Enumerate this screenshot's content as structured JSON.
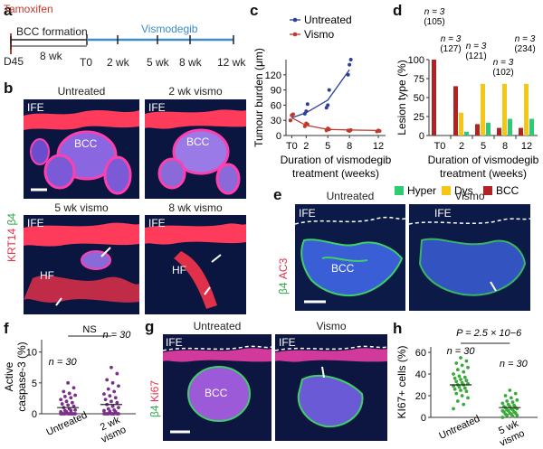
{
  "panels": {
    "a": "a",
    "b": "b",
    "c": "c",
    "d": "d",
    "e": "e",
    "f": "f",
    "g": "g",
    "h": "h"
  },
  "timeline": {
    "tamoxifen": "Tamoxifen",
    "bcc_formation": "BCC formation",
    "vismodegib": "Vismodegib",
    "d45": "D45",
    "eight_wk": "8 wk",
    "ticks": [
      "T0",
      "2 wk",
      "5 wk",
      "8 wk",
      "12 wk"
    ]
  },
  "panel_b": {
    "stain_krt14": "KRT14",
    "stain_b4": "β4",
    "images": [
      {
        "title": "Untreated",
        "labels": [
          "IFE",
          "BCC"
        ]
      },
      {
        "title": "2 wk vismo",
        "labels": [
          "IFE",
          "BCC"
        ]
      },
      {
        "title": "5 wk vismo",
        "labels": [
          "IFE",
          "HF"
        ]
      },
      {
        "title": "8 wk vismo",
        "labels": [
          "IFE",
          "HF"
        ]
      }
    ]
  },
  "panel_e": {
    "stain_b4": "β4",
    "stain_ac3": "AC3",
    "images": [
      {
        "title": "Untreated",
        "labels": [
          "IFE",
          "BCC"
        ]
      },
      {
        "title": "Vismo",
        "labels": [
          "IFE"
        ]
      }
    ]
  },
  "panel_g": {
    "stain_b4": "β4",
    "stain_ki67": "Ki67",
    "images": [
      {
        "title": "Untreated",
        "labels": [
          "IFE",
          "BCC"
        ]
      },
      {
        "title": "Vismo",
        "labels": [
          "IFE"
        ]
      }
    ]
  },
  "chart_data": [
    {
      "id": "c",
      "type": "line",
      "ylabel": "Tumour burden (μm)",
      "xlabel_line1": "Duration of vismodegib",
      "xlabel_line2": "treatment (weeks)",
      "x_ticks": [
        "T0",
        "2",
        "5",
        "8",
        "12"
      ],
      "x_values": [
        0,
        2,
        5,
        8,
        12
      ],
      "y_ticks": [
        "0",
        "30",
        "60",
        "90",
        "120"
      ],
      "ylim": [
        0,
        150
      ],
      "xlim": [
        -0.8,
        13
      ],
      "legend": [
        "Untreated",
        "Vismo"
      ],
      "colors": {
        "untreated": "#2b3f95",
        "vismo": "#c0392b"
      },
      "series": [
        {
          "name": "Untreated",
          "line_x": [
            0,
            2,
            5,
            8
          ],
          "line_y": [
            35,
            45,
            70,
            130
          ],
          "points_x": [
            0,
            0,
            0,
            2,
            2,
            2,
            5,
            5,
            5,
            8,
            8,
            8
          ],
          "points_y": [
            30,
            40,
            42,
            43,
            48,
            62,
            55,
            60,
            90,
            120,
            140,
            150
          ]
        },
        {
          "name": "Vismo",
          "line_x": [
            0,
            2,
            5,
            8,
            12
          ],
          "line_y": [
            35,
            20,
            12,
            11,
            10
          ],
          "points_x": [
            0,
            0,
            0,
            2,
            2,
            2,
            5,
            5,
            5,
            8,
            8,
            8,
            12,
            12,
            12
          ],
          "points_y": [
            30,
            40,
            42,
            18,
            24,
            22,
            10,
            14,
            12,
            10,
            9,
            11,
            8,
            10,
            9
          ]
        }
      ]
    },
    {
      "id": "d",
      "type": "bar",
      "ylabel": "Lesion type (%)",
      "xlabel_line1": "Duration of vismodegib",
      "xlabel_line2": "treatment (weeks)",
      "categories": [
        "T0",
        "2",
        "5",
        "8",
        "12"
      ],
      "y_ticks": [
        "0",
        "25",
        "50",
        "75",
        "100"
      ],
      "ylim": [
        0,
        100
      ],
      "legend": [
        "Hyper",
        "Dys",
        "BCC"
      ],
      "colors": {
        "hyper": "#2ecc71",
        "dys": "#f5c518",
        "bcc": "#b22222"
      },
      "series": [
        {
          "name": "BCC",
          "values": [
            100,
            65,
            15,
            10,
            10
          ]
        },
        {
          "name": "Dys",
          "values": [
            0,
            30,
            68,
            68,
            68
          ]
        },
        {
          "name": "Hyper",
          "values": [
            0,
            5,
            17,
            22,
            22
          ]
        }
      ],
      "annotations": [
        {
          "category": "T0",
          "lines": [
            "n = 3",
            "(105)"
          ]
        },
        {
          "category": "2",
          "lines": [
            "n = 3",
            "(127)"
          ]
        },
        {
          "category": "5",
          "lines": [
            "n = 3",
            "(121)"
          ]
        },
        {
          "category": "8",
          "lines": [
            "n = 3",
            "(102)"
          ]
        },
        {
          "category": "12",
          "lines": [
            "n = 3",
            "(234)"
          ]
        }
      ]
    },
    {
      "id": "f",
      "type": "scatter",
      "ylabel_line1": "Active",
      "ylabel_line2": "caspase-3 (%)",
      "categories": [
        "Untreated",
        "2 wk\nvismo"
      ],
      "cat_line1": [
        "Untreated",
        "2 wk"
      ],
      "cat_line2": [
        "",
        "vismo"
      ],
      "y_ticks": [
        "0",
        "5",
        "10"
      ],
      "ylim": [
        0,
        12
      ],
      "ns": "NS",
      "n_labels": [
        "n = 30",
        "n = 30"
      ],
      "means": [
        1.0,
        1.5
      ],
      "points": [
        [
          0,
          0,
          0,
          0,
          0,
          0,
          0,
          0,
          0,
          0,
          0.3,
          0.3,
          0.5,
          0.5,
          0.6,
          0.8,
          1.0,
          1.2,
          1.4,
          1.6,
          1.8,
          2.0,
          2.3,
          2.6,
          2.8,
          3.0,
          3.3,
          3.6,
          4.2,
          5.0
        ],
        [
          0,
          0,
          0,
          0,
          0,
          0,
          0,
          0,
          0,
          0.3,
          0.4,
          0.5,
          0.6,
          0.8,
          1.0,
          1.2,
          1.5,
          1.8,
          2.0,
          2.3,
          2.6,
          2.9,
          3.2,
          3.6,
          4.0,
          4.5,
          5.0,
          5.5,
          6.5,
          7.5
        ]
      ]
    },
    {
      "id": "h",
      "type": "scatter",
      "ylabel": "KI67+ cells (%)",
      "categories": [
        "Untreated",
        "5 wk\nvismo"
      ],
      "cat_line1": [
        "Untreated",
        "5 wk"
      ],
      "cat_line2": [
        "",
        "vismo"
      ],
      "y_ticks": [
        "0",
        "20",
        "40",
        "60"
      ],
      "ylim": [
        0,
        65
      ],
      "pvalue": "P = 2.5 × 10−6",
      "n_labels": [
        "n = 30",
        "n = 30"
      ],
      "means": [
        30,
        9
      ],
      "points": [
        [
          8,
          12,
          15,
          18,
          20,
          22,
          24,
          25,
          26,
          27,
          28,
          29,
          30,
          30,
          31,
          32,
          33,
          34,
          35,
          36,
          37,
          38,
          40,
          42,
          44,
          46,
          48,
          50,
          52,
          55
        ],
        [
          0,
          1,
          2,
          2,
          3,
          3,
          4,
          4,
          5,
          5,
          6,
          6,
          7,
          7,
          8,
          8,
          9,
          9,
          10,
          10,
          11,
          12,
          13,
          14,
          15,
          16,
          18,
          20,
          22,
          25
        ]
      ]
    }
  ]
}
